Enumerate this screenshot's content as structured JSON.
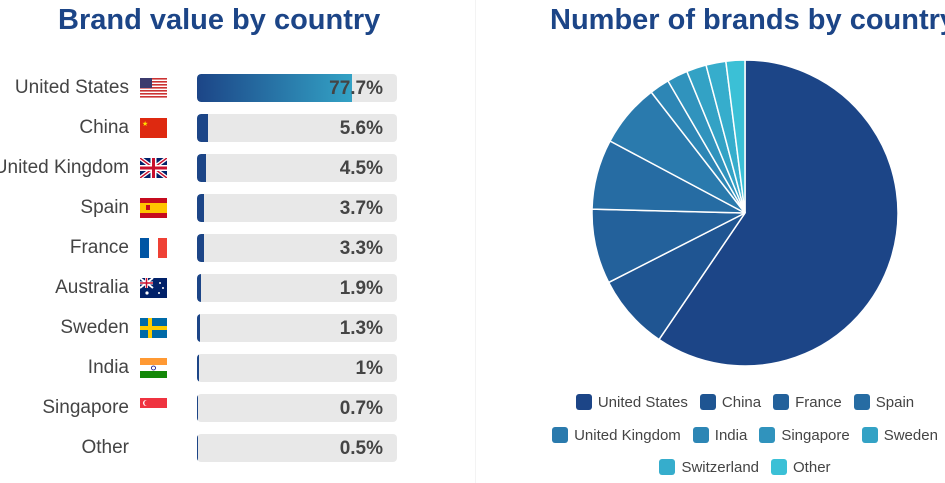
{
  "chart_data": [
    {
      "type": "bar",
      "title": "Brand value by country",
      "categories": [
        "United States",
        "China",
        "United Kingdom",
        "Spain",
        "France",
        "Australia",
        "Sweden",
        "India",
        "Singapore",
        "Other"
      ],
      "values": [
        77.7,
        5.6,
        4.5,
        3.7,
        3.3,
        1.9,
        1.3,
        1,
        0.7,
        0.5
      ],
      "value_labels": [
        "77.7%",
        "5.6%",
        "4.5%",
        "3.7%",
        "3.3%",
        "1.9%",
        "1.3%",
        "1%",
        "0.7%",
        "0.5%"
      ],
      "flags": [
        "us-flag-icon",
        "china-flag-icon",
        "uk-flag-icon",
        "spain-flag-icon",
        "france-flag-icon",
        "australia-flag-icon",
        "sweden-flag-icon",
        "india-flag-icon",
        "singapore-flag-icon",
        ""
      ],
      "ylim": [
        0,
        100
      ]
    },
    {
      "type": "pie",
      "title": "Number of brands by country",
      "categories": [
        "United States",
        "China",
        "France",
        "Spain",
        "United Kingdom",
        "India",
        "Singapore",
        "Sweden",
        "Switzerland",
        "Other"
      ],
      "values": [
        59.5,
        8.0,
        7.9,
        7.4,
        6.7,
        2.1,
        2.2,
        2.1,
        2.1,
        2.0
      ],
      "colors": [
        "#1c4587",
        "#1f5592",
        "#23619b",
        "#266ca3",
        "#2a7aad",
        "#2d86b5",
        "#3093bd",
        "#33a2c5",
        "#36adcc",
        "#3bc0d6"
      ],
      "legend": "bottom"
    }
  ],
  "colors": {
    "title": "#1c4587",
    "bar": "#1c4587",
    "bar_gradient_end": "#33a2c5",
    "track": "#e8e8e8"
  }
}
